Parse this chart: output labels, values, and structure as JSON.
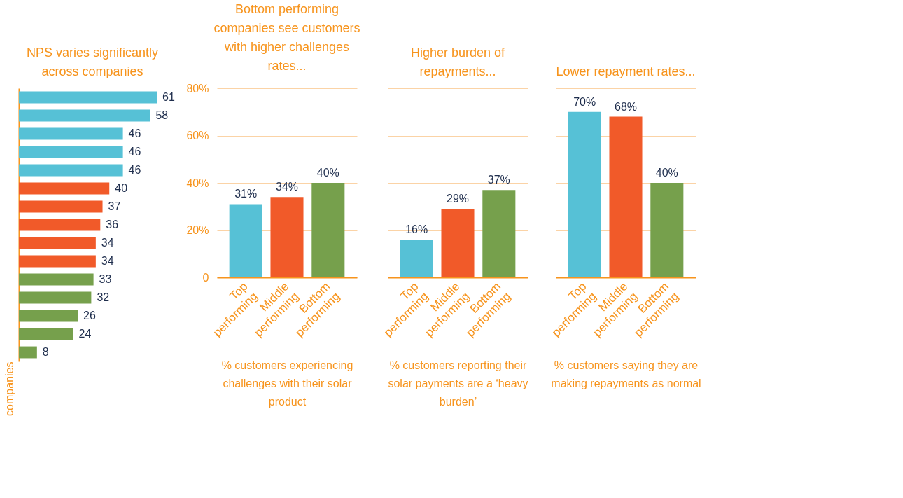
{
  "chart_data": [
    {
      "type": "bar",
      "orientation": "horizontal",
      "title": "NPS varies significantly across companies",
      "ylabel": "companies",
      "categories": [
        null,
        null,
        null,
        null,
        null,
        null,
        null,
        null,
        null,
        null,
        null,
        null,
        null,
        null,
        null
      ],
      "values": [
        61,
        58,
        46,
        46,
        46,
        40,
        37,
        36,
        34,
        34,
        33,
        32,
        26,
        24,
        8
      ],
      "colors": [
        "#56c1d6",
        "#56c1d6",
        "#56c1d6",
        "#56c1d6",
        "#56c1d6",
        "#f15a29",
        "#f15a29",
        "#f15a29",
        "#f15a29",
        "#f15a29",
        "#76a04c",
        "#76a04c",
        "#76a04c",
        "#76a04c",
        "#76a04c"
      ],
      "data_labels": true
    },
    {
      "type": "bar",
      "title": "Bottom performing companies see customers with higher challenges rates...",
      "xlabel": "% customers experiencing challenges with their solar product",
      "categories": [
        "Top performing",
        "Middle performing",
        "Bottom performing"
      ],
      "values": [
        31,
        34,
        40
      ],
      "colors": [
        "#56c1d6",
        "#f15a29",
        "#76a04c"
      ],
      "value_labels": [
        "31%",
        "34%",
        "40%"
      ],
      "ylim": [
        0,
        80
      ],
      "yticks": [
        0,
        {
          "value": 20,
          "label": "20%"
        },
        {
          "value": 40,
          "label": "40%"
        },
        {
          "value": 60,
          "label": "60%"
        },
        {
          "value": 80,
          "label": "80%"
        }
      ],
      "grid": "y"
    },
    {
      "type": "bar",
      "title": "Higher burden of repayments...",
      "xlabel": "% customers reporting their solar payments are a ‘heavy burden’",
      "categories": [
        "Top performing",
        "Middle performing",
        "Bottom performing"
      ],
      "values": [
        16,
        29,
        37
      ],
      "colors": [
        "#56c1d6",
        "#f15a29",
        "#76a04c"
      ],
      "value_labels": [
        "16%",
        "29%",
        "37%"
      ],
      "ylim": [
        0,
        80
      ],
      "yticks": [
        {
          "value": 0,
          "label": null
        },
        {
          "value": 20,
          "label": null
        },
        {
          "value": 40,
          "label": null
        },
        {
          "value": 60,
          "label": null
        },
        {
          "value": 80,
          "label": null
        }
      ],
      "grid": "y",
      "tick_labels": "x"
    },
    {
      "type": "bar",
      "title": "Lower repayment rates...",
      "xlabel": "% customers saying they are making repayments as normal",
      "categories": [
        "Top performing",
        "Middle performing",
        "Bottom performing"
      ],
      "values": [
        70,
        68,
        40
      ],
      "colors": [
        "#56c1d6",
        "#f15a29",
        "#76a04c"
      ],
      "value_labels": [
        "70%",
        "68%",
        "40%"
      ],
      "ylim": [
        0,
        80
      ],
      "yticks": [
        {
          "value": 0,
          "label": null
        },
        {
          "value": 20,
          "label": null
        },
        {
          "value": 40,
          "label": null
        },
        {
          "value": 60,
          "label": null
        },
        {
          "value": 80,
          "label": null
        }
      ],
      "grid": "y",
      "tick_labels": "x"
    }
  ]
}
